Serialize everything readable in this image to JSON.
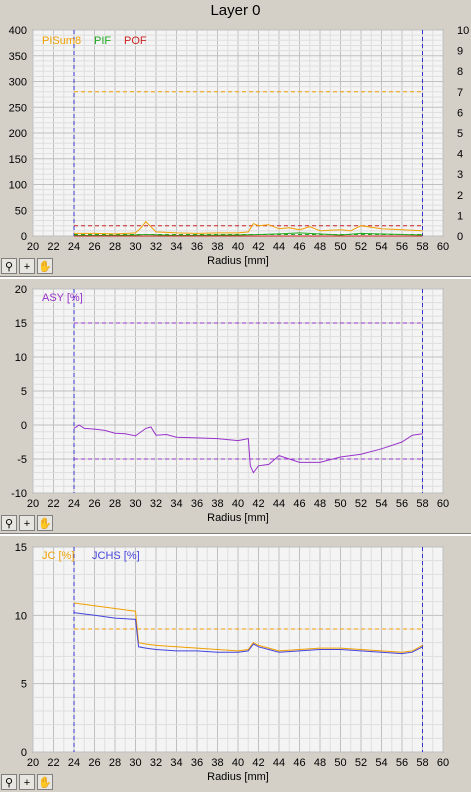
{
  "window_title": "Layer 0",
  "chart_data": [
    {
      "type": "line",
      "x_axis": {
        "label": "Radius [mm]",
        "range": [
          20,
          60
        ],
        "ticks": [
          20,
          22,
          24,
          26,
          28,
          30,
          32,
          34,
          36,
          38,
          40,
          42,
          44,
          46,
          48,
          50,
          52,
          54,
          56,
          58,
          60
        ]
      },
      "y_axis_left": {
        "range": [
          0,
          400
        ],
        "ticks": [
          0,
          50,
          100,
          150,
          200,
          250,
          300,
          350,
          400
        ]
      },
      "y_axis_right": {
        "range": [
          0,
          10
        ],
        "ticks": [
          0,
          1,
          2,
          3,
          4,
          5,
          6,
          7,
          8,
          9,
          10
        ]
      },
      "grid": true,
      "legend": [
        "PISum8",
        "PIF",
        "POF"
      ],
      "series": [
        {
          "name": "PISum8",
          "color": "#f0a000",
          "x": [
            24,
            26,
            28,
            30,
            30.5,
            31,
            31.5,
            32,
            34,
            36,
            38,
            40,
            41,
            41.5,
            42,
            43,
            44,
            45,
            46,
            47,
            48,
            50,
            51,
            52,
            54,
            56,
            58
          ],
          "values": [
            5,
            5,
            4,
            6,
            15,
            28,
            18,
            8,
            6,
            5,
            6,
            6,
            8,
            24,
            20,
            22,
            14,
            16,
            12,
            18,
            10,
            12,
            10,
            20,
            14,
            12,
            10
          ]
        },
        {
          "name": "PIF",
          "color": "#22aa22",
          "x": [
            24,
            28,
            30,
            31,
            34,
            40,
            42,
            44,
            45,
            46,
            50,
            52,
            56,
            58
          ],
          "values": [
            1,
            1,
            2,
            3,
            1,
            2,
            3,
            4,
            5,
            6,
            2,
            5,
            3,
            2
          ]
        },
        {
          "name": "POF",
          "color": "#cc2222",
          "x": [
            24,
            58
          ],
          "values": [
            0,
            0
          ]
        }
      ],
      "reference_lines": [
        {
          "y_right": 7,
          "color": "#f0a000",
          "style": "dashed"
        },
        {
          "y": 20,
          "color": "#cc2222",
          "style": "dashed"
        },
        {
          "y": 3,
          "color": "#22aa22",
          "style": "dashed"
        }
      ],
      "vertical_markers": [
        24,
        58
      ]
    },
    {
      "type": "line",
      "x_axis": {
        "label": "Radius [mm]",
        "range": [
          20,
          60
        ],
        "ticks": [
          20,
          22,
          24,
          26,
          28,
          30,
          32,
          34,
          36,
          38,
          40,
          42,
          44,
          46,
          48,
          50,
          52,
          54,
          56,
          58,
          60
        ]
      },
      "y_axis_left": {
        "range": [
          -10,
          20
        ],
        "ticks": [
          -10,
          -5,
          0,
          5,
          10,
          15,
          20
        ]
      },
      "grid": true,
      "legend": [
        "ASY [%]"
      ],
      "series": [
        {
          "name": "ASY [%]",
          "color": "#9933cc",
          "x": [
            24,
            24.5,
            25,
            26,
            27,
            28,
            29,
            30,
            31,
            31.5,
            32,
            33,
            34,
            36,
            38,
            40,
            41,
            41.2,
            41.5,
            42,
            43,
            44,
            45,
            46,
            48,
            50,
            52,
            54,
            56,
            57,
            58
          ],
          "values": [
            -0.5,
            0,
            -0.5,
            -0.6,
            -0.8,
            -1.2,
            -1.3,
            -1.6,
            -0.5,
            -0.3,
            -1.5,
            -1.4,
            -1.8,
            -1.9,
            -2.0,
            -2.3,
            -2.0,
            -6.0,
            -7.0,
            -6.0,
            -5.8,
            -4.5,
            -5.0,
            -5.5,
            -5.5,
            -4.7,
            -4.3,
            -3.5,
            -2.5,
            -1.5,
            -1.3
          ]
        }
      ],
      "reference_lines": [
        {
          "y": 15,
          "color": "#9933cc",
          "style": "dashed"
        },
        {
          "y": -5,
          "color": "#9933cc",
          "style": "dashed"
        }
      ],
      "vertical_markers": [
        24,
        58
      ]
    },
    {
      "type": "line",
      "x_axis": {
        "label": "Radius [mm]",
        "range": [
          20,
          60
        ],
        "ticks": [
          20,
          22,
          24,
          26,
          28,
          30,
          32,
          34,
          36,
          38,
          40,
          42,
          44,
          46,
          48,
          50,
          52,
          54,
          56,
          58,
          60
        ]
      },
      "y_axis_left": {
        "range": [
          0,
          15
        ],
        "ticks": [
          0,
          5,
          10,
          15
        ]
      },
      "grid": true,
      "legend": [
        "JC [%]",
        "JCHS [%]"
      ],
      "series": [
        {
          "name": "JC [%]",
          "color": "#f0a000",
          "x": [
            24,
            25,
            26,
            28,
            30,
            30.3,
            31,
            32,
            34,
            36,
            38,
            40,
            41,
            41.5,
            42,
            43,
            44,
            46,
            48,
            50,
            52,
            54,
            56,
            57,
            58
          ],
          "values": [
            10.9,
            10.8,
            10.7,
            10.5,
            10.3,
            8.0,
            7.9,
            7.8,
            7.7,
            7.6,
            7.5,
            7.4,
            7.5,
            8.0,
            7.8,
            7.6,
            7.4,
            7.5,
            7.6,
            7.6,
            7.5,
            7.4,
            7.3,
            7.4,
            7.8
          ]
        },
        {
          "name": "JCHS [%]",
          "color": "#4444dd",
          "x": [
            24,
            25,
            26,
            28,
            30,
            30.3,
            31,
            32,
            34,
            36,
            38,
            40,
            41,
            41.5,
            42,
            43,
            44,
            46,
            48,
            50,
            52,
            54,
            56,
            57,
            58
          ],
          "values": [
            10.2,
            10.1,
            10.0,
            9.8,
            9.7,
            7.7,
            7.6,
            7.5,
            7.4,
            7.4,
            7.3,
            7.3,
            7.4,
            7.9,
            7.7,
            7.5,
            7.3,
            7.4,
            7.5,
            7.5,
            7.4,
            7.3,
            7.2,
            7.3,
            7.7
          ]
        }
      ],
      "reference_lines": [
        {
          "y": 9,
          "color": "#f0a000",
          "style": "dashed"
        }
      ],
      "vertical_markers": [
        24,
        58
      ]
    }
  ],
  "toolbar": {
    "zoom_icon": "zoom-icon",
    "crosshair_icon": "crosshair-icon",
    "pan_icon": "hand-icon"
  }
}
